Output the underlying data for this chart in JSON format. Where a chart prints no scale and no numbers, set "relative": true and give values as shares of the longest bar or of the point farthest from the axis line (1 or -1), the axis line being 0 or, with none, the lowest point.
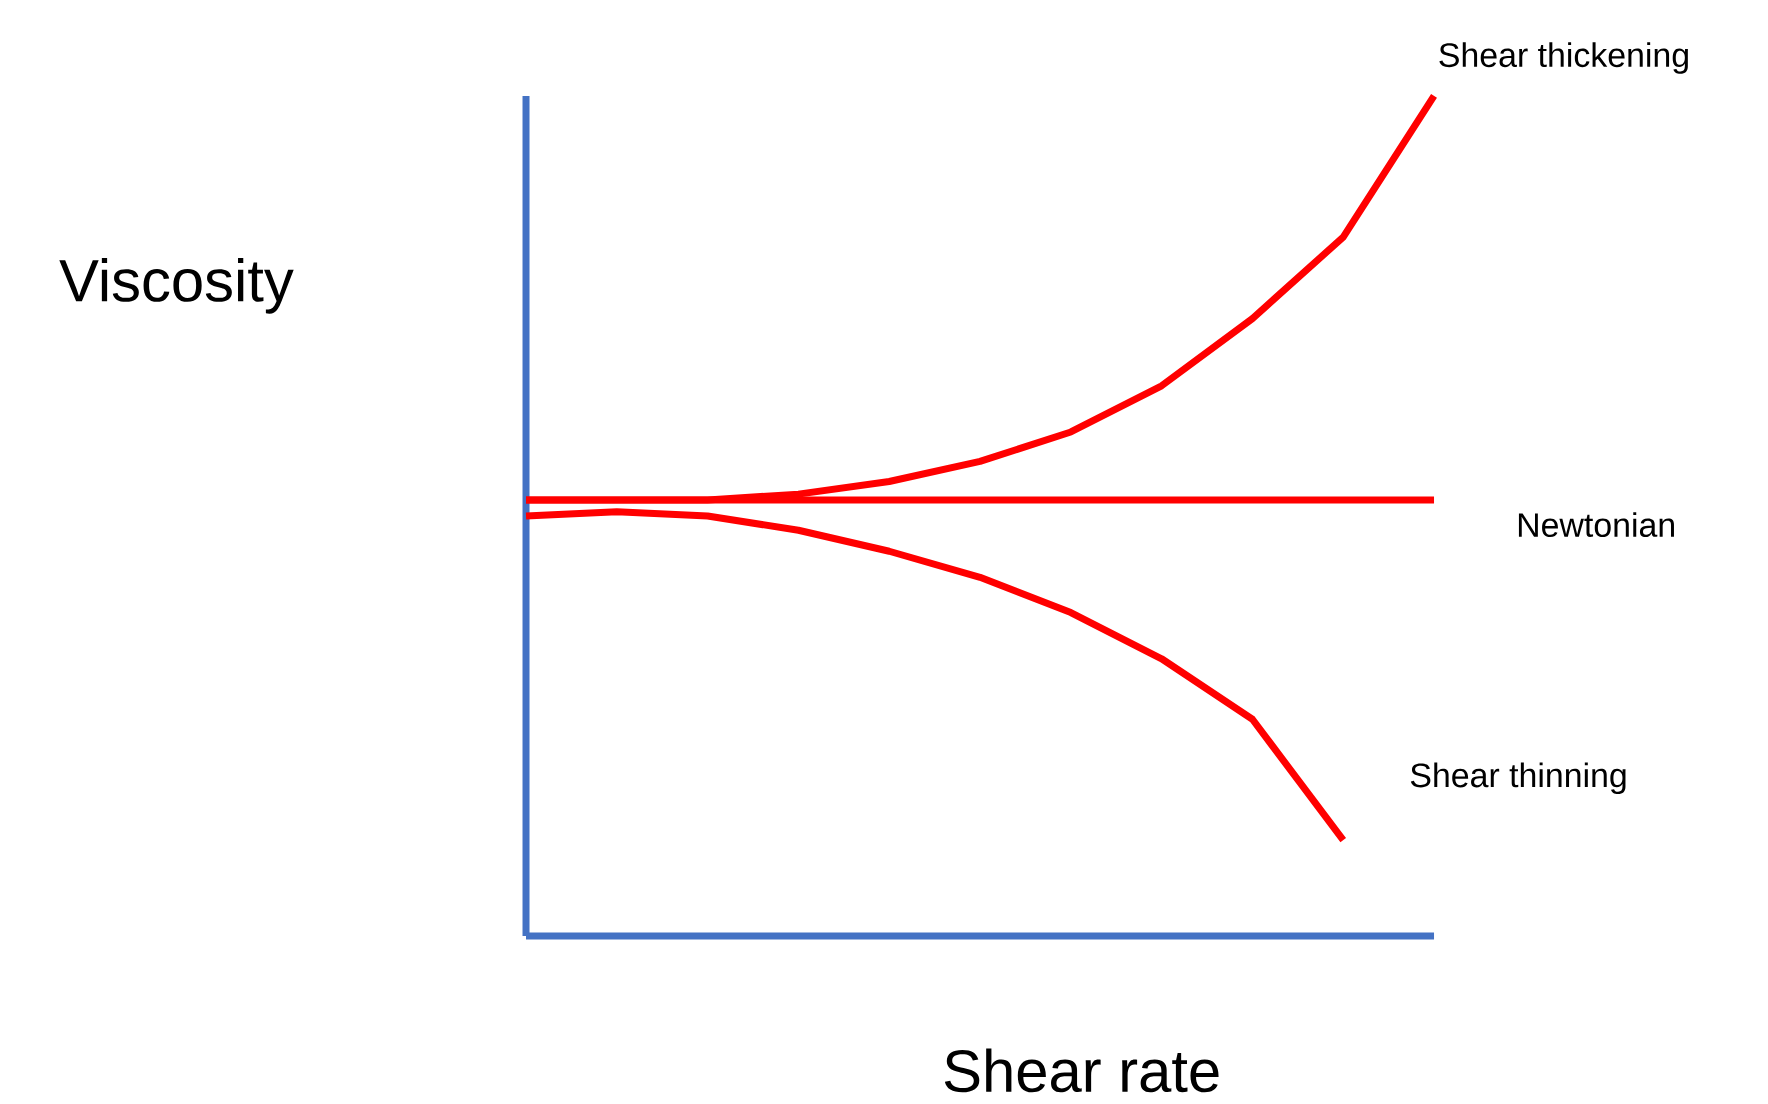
{
  "chart_data": {
    "type": "line",
    "relative": true,
    "xlabel": "Shear rate",
    "ylabel": "Viscosity",
    "marker": "none",
    "line_style": "solid",
    "tick_labels": false,
    "categories": [
      null,
      null,
      null,
      null,
      null,
      null,
      null,
      null,
      null,
      null,
      null
    ],
    "series": [
      {
        "name": "Shear thickening",
        "color": "#ff0000",
        "values": [
          0.519,
          0.519,
          0.519,
          0.526,
          0.541,
          0.565,
          0.6,
          0.655,
          0.735,
          0.832,
          1.0
        ]
      },
      {
        "name": "Newtonian",
        "color": "#ff0000",
        "values": [
          0.519,
          0.519,
          0.519,
          0.519,
          0.519,
          0.519,
          0.519,
          0.519,
          0.519,
          0.519,
          0.519
        ]
      },
      {
        "name": "Shear thinning",
        "color": "#ff0000",
        "values": [
          0.5,
          0.505,
          0.5,
          0.483,
          0.458,
          0.427,
          0.385,
          0.33,
          0.258,
          0.114,
          null
        ]
      }
    ]
  }
}
